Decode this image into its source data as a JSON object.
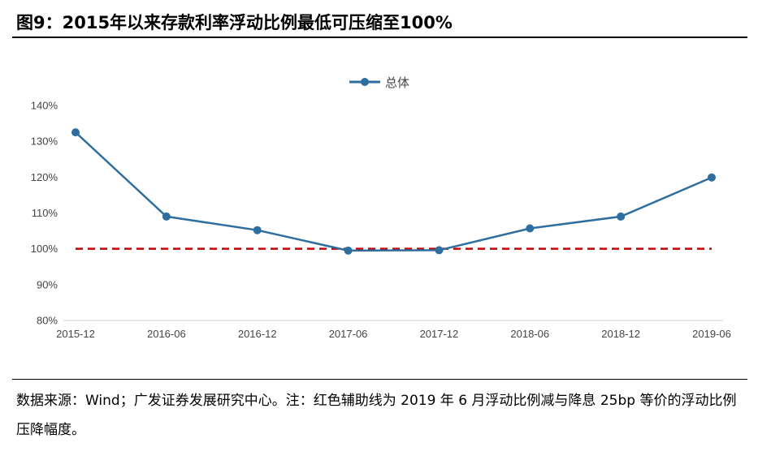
{
  "header": {
    "title": "图9：2015年以来存款利率浮动比例最低可压缩至100%"
  },
  "footer": {
    "source": "数据来源：Wind；广发证券发展研究中心。注：红色辅助线为 2019 年 6 月浮动比例减与降息 25bp 等价的浮动比例压降幅度。"
  },
  "chart_data": {
    "type": "line",
    "title": "",
    "xlabel": "",
    "ylabel": "",
    "categories": [
      "2015-12",
      "2016-06",
      "2016-12",
      "2017-06",
      "2017-12",
      "2018-06",
      "2018-12",
      "2019-06"
    ],
    "series": [
      {
        "name": "总体",
        "values": [
          132.5,
          109.0,
          105.2,
          99.5,
          99.6,
          105.7,
          109.0,
          119.9
        ],
        "color": "#2E6E9E"
      }
    ],
    "reference_lines": [
      {
        "value": 100,
        "color": "#C00000",
        "style": "dashed"
      }
    ],
    "ylim": [
      80,
      140
    ],
    "y_ticks": [
      "80%",
      "90%",
      "100%",
      "110%",
      "120%",
      "130%",
      "140%"
    ],
    "y_tick_values": [
      80,
      90,
      100,
      110,
      120,
      130,
      140
    ],
    "grid": false,
    "legend_position": "top-center"
  }
}
